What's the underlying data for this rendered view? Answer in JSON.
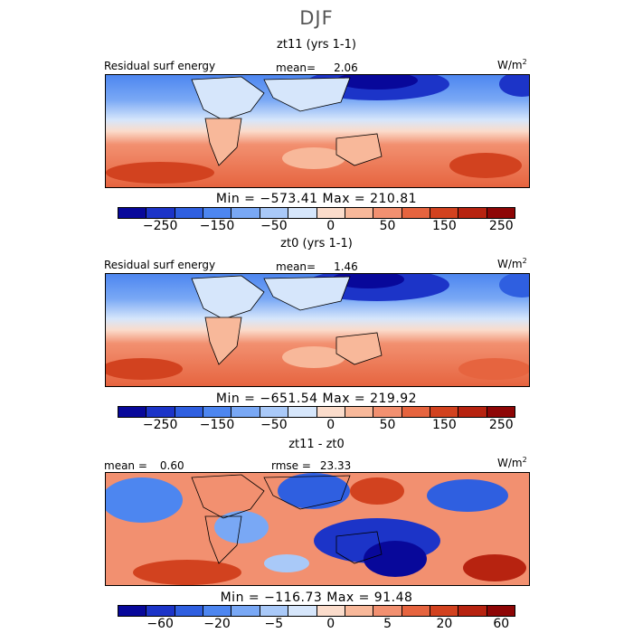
{
  "page": {
    "title": "DJF"
  },
  "chart_data": [
    {
      "type": "heatmap",
      "title": "zt11 (yrs 1-1)",
      "variable": "Residual surf energy",
      "units": "W/m",
      "units_exp": "2",
      "mean_label": "mean=",
      "mean_value": "2.06",
      "min_max_text": "Min = −573.41 Max = 210.81",
      "min": -573.41,
      "max": 210.81,
      "mean": 2.06,
      "colorbar_ticks": [
        "−250",
        "−150",
        "−50",
        "0",
        "50",
        "150",
        "250"
      ],
      "colorbar_colors": [
        "#08089a",
        "#1c34c8",
        "#2f5fe0",
        "#4d86f0",
        "#79a8f5",
        "#a9c9f8",
        "#d6e6fb",
        "#fbdccb",
        "#f8b89a",
        "#f29070",
        "#e6643f",
        "#d2421f",
        "#b72310",
        "#8e0606"
      ]
    },
    {
      "type": "heatmap",
      "title": "zt0 (yrs 1-1)",
      "variable": "Residual surf energy",
      "units": "W/m",
      "units_exp": "2",
      "mean_label": "mean=",
      "mean_value": "1.46",
      "min_max_text": "Min = −651.54 Max = 219.92",
      "min": -651.54,
      "max": 219.92,
      "mean": 1.46,
      "colorbar_ticks": [
        "−250",
        "−150",
        "−50",
        "0",
        "50",
        "150",
        "250"
      ],
      "colorbar_colors": [
        "#08089a",
        "#1c34c8",
        "#2f5fe0",
        "#4d86f0",
        "#79a8f5",
        "#a9c9f8",
        "#d6e6fb",
        "#fbdccb",
        "#f8b89a",
        "#f29070",
        "#e6643f",
        "#d2421f",
        "#b72310",
        "#8e0606"
      ]
    },
    {
      "type": "heatmap",
      "title": "zt11 - zt0",
      "mean_label": "mean =",
      "mean_value": "0.60",
      "rmse_label": "rmse =",
      "rmse_value": "23.33",
      "units": "W/m",
      "units_exp": "2",
      "min_max_text": "Min = −116.73 Max = 91.48",
      "min": -116.73,
      "max": 91.48,
      "mean": 0.6,
      "rmse": 23.33,
      "colorbar_ticks": [
        "−60",
        "−20",
        "−5",
        "0",
        "5",
        "20",
        "60"
      ],
      "colorbar_colors": [
        "#08089a",
        "#1c34c8",
        "#2f5fe0",
        "#4d86f0",
        "#79a8f5",
        "#a9c9f8",
        "#d6e6fb",
        "#fbdccb",
        "#f8b89a",
        "#f29070",
        "#e6643f",
        "#d2421f",
        "#b72310",
        "#8e0606"
      ]
    }
  ]
}
